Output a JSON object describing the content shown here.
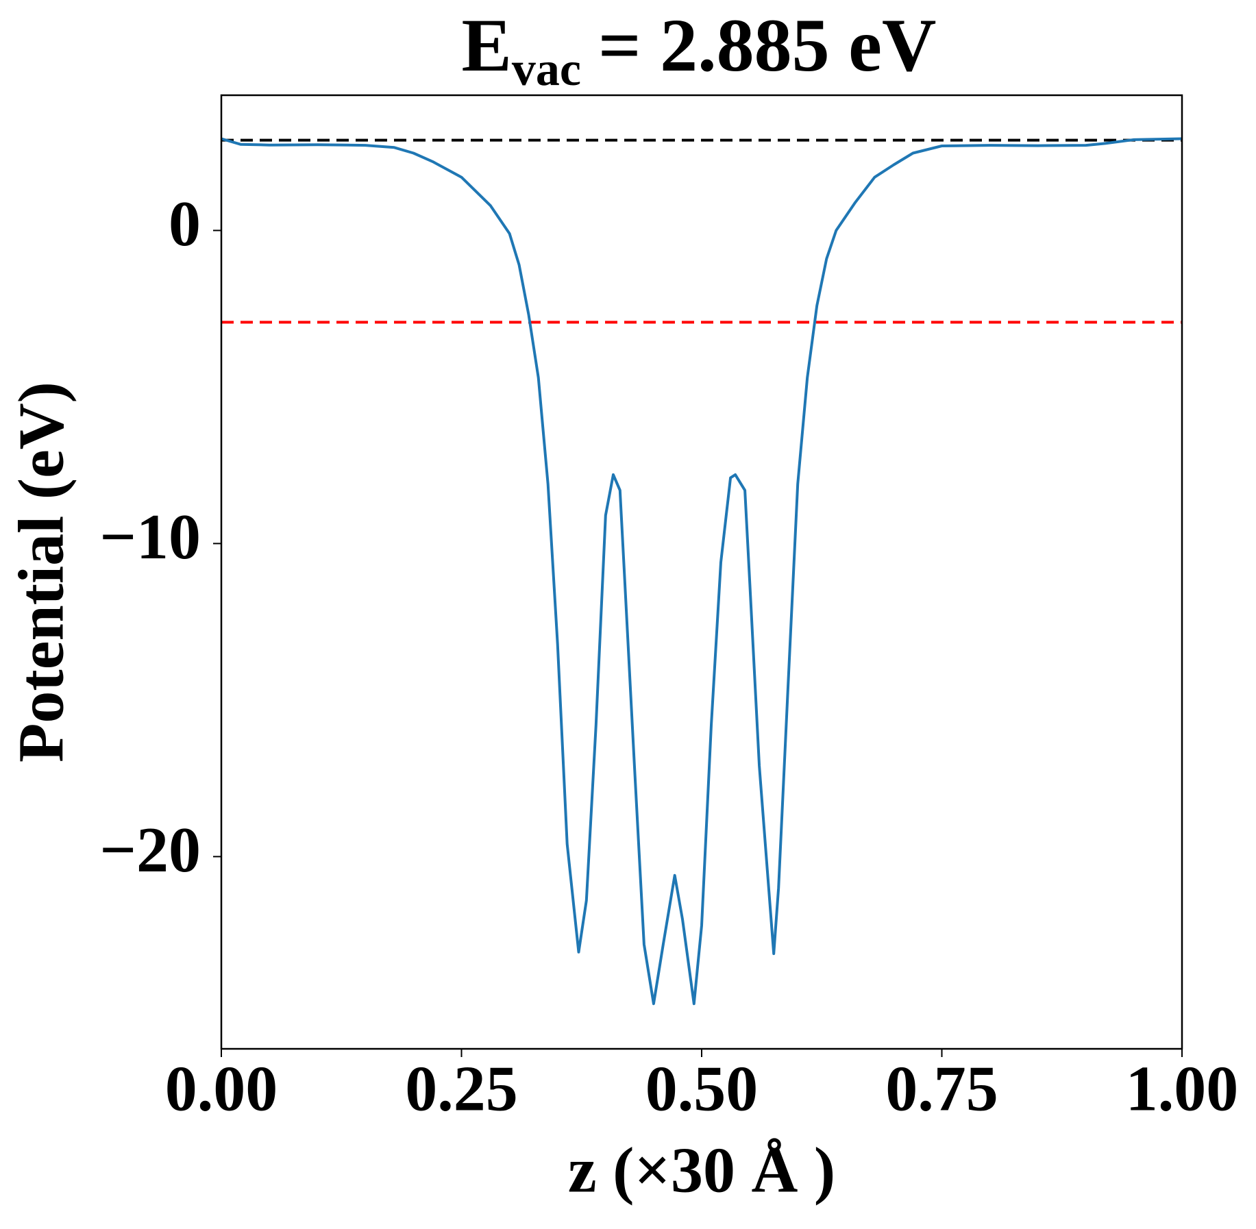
{
  "chart_data": {
    "type": "line",
    "title": {
      "main": "E",
      "sub": "vac",
      "rest": "= 2.885 eV"
    },
    "xlabel": "z (×30 Å )",
    "ylabel": "Potential (eV)",
    "xlim": [
      0,
      1
    ],
    "ylim": [
      -26.14,
      4.32
    ],
    "xticks": [
      {
        "value": 0,
        "label": "0.00"
      },
      {
        "value": 0.25,
        "label": "0.25"
      },
      {
        "value": 0.5,
        "label": "0.50"
      },
      {
        "value": 0.75,
        "label": "0.75"
      },
      {
        "value": 1,
        "label": "1.00"
      }
    ],
    "yticks": [
      0,
      {
        "value": -10,
        "label": "−10"
      },
      {
        "value": -20,
        "label": "−20"
      }
    ],
    "hlines": [
      {
        "value": 2.885,
        "color": "#000000"
      },
      {
        "value": -2.93,
        "color": "#ff0000"
      }
    ],
    "x": [
      0,
      0.02,
      0.05,
      0.1,
      0.15,
      0.18,
      0.2,
      0.22,
      0.25,
      0.28,
      0.3,
      0.31,
      0.32,
      0.33,
      0.34,
      0.35,
      0.36,
      0.372,
      0.38,
      0.39,
      0.4,
      0.408,
      0.415,
      0.42,
      0.43,
      0.44,
      0.45,
      0.46,
      0.472,
      0.48,
      0.492,
      0.5,
      0.51,
      0.52,
      0.53,
      0.535,
      0.545,
      0.55,
      0.56,
      0.575,
      0.58,
      0.59,
      0.6,
      0.61,
      0.62,
      0.63,
      0.64,
      0.66,
      0.68,
      0.7,
      0.72,
      0.75,
      0.8,
      0.85,
      0.9,
      0.92,
      0.95,
      1
    ],
    "series": [
      {
        "name": "Potential",
        "color": "#1f77b4",
        "values": [
          2.93,
          2.75,
          2.73,
          2.74,
          2.72,
          2.65,
          2.47,
          2.2,
          1.7,
          0.8,
          -0.1,
          -1.1,
          -2.7,
          -4.7,
          -8.1,
          -13.2,
          -19.6,
          -23.05,
          -21.4,
          -15.8,
          -9.1,
          -7.8,
          -8.3,
          -11.2,
          -17.1,
          -22.8,
          -24.7,
          -22.8,
          -20.6,
          -22.0,
          -24.7,
          -22.2,
          -15.8,
          -10.6,
          -7.9,
          -7.8,
          -8.3,
          -11.2,
          -17.1,
          -23.1,
          -21.0,
          -14.5,
          -8.1,
          -4.7,
          -2.4,
          -0.9,
          0.0,
          0.9,
          1.7,
          2.1,
          2.47,
          2.7,
          2.72,
          2.71,
          2.72,
          2.78,
          2.9,
          2.93
        ]
      }
    ]
  }
}
